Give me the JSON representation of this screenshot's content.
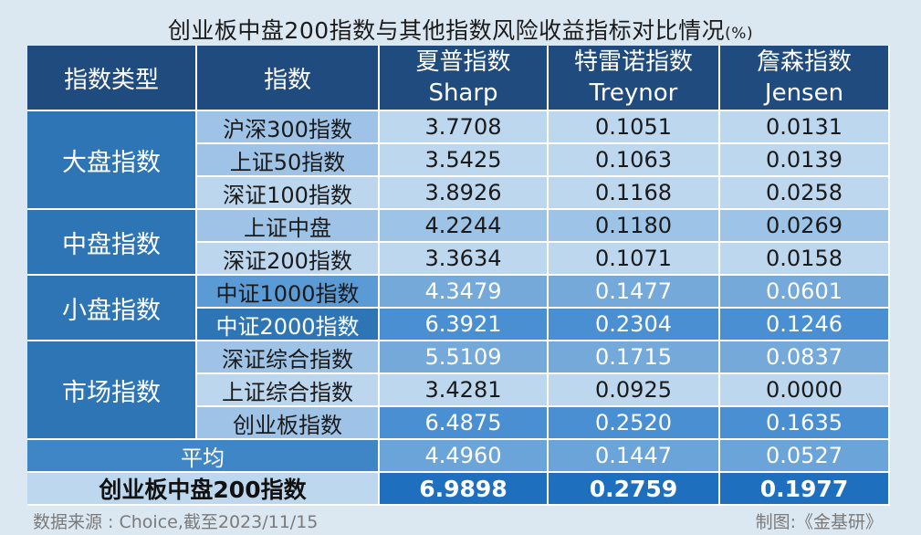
{
  "title": "创业板中盘200指数与其他指数风险收益指标对比情况",
  "title_unit": "(%)",
  "headers": {
    "type": "指数类型",
    "index": "指数",
    "sharp_cn": "夏普指数",
    "sharp_en": "Sharp",
    "treynor_cn": "特雷诺指数",
    "treynor_en": "Treynor",
    "jensen_cn": "詹森指数",
    "jensen_en": "Jensen"
  },
  "groups": [
    {
      "label": "大盘指数"
    },
    {
      "label": "中盘指数"
    },
    {
      "label": "小盘指数"
    },
    {
      "label": "市场指数"
    }
  ],
  "rows": [
    {
      "name": "沪深300指数",
      "sharp": "3.7708",
      "treynor": "0.1051",
      "jensen": "0.0131"
    },
    {
      "name": "上证50指数",
      "sharp": "3.5425",
      "treynor": "0.1063",
      "jensen": "0.0139"
    },
    {
      "name": "深证100指数",
      "sharp": "3.8926",
      "treynor": "0.1168",
      "jensen": "0.0258"
    },
    {
      "name": "上证中盘",
      "sharp": "4.2244",
      "treynor": "0.1180",
      "jensen": "0.0269"
    },
    {
      "name": "深证200指数",
      "sharp": "3.3634",
      "treynor": "0.1071",
      "jensen": "0.0158"
    },
    {
      "name": "中证1000指数",
      "sharp": "4.3479",
      "treynor": "0.1477",
      "jensen": "0.0601"
    },
    {
      "name": "中证2000指数",
      "sharp": "6.3921",
      "treynor": "0.2304",
      "jensen": "0.1246"
    },
    {
      "name": "深证综合指数",
      "sharp": "5.5109",
      "treynor": "0.1715",
      "jensen": "0.0837"
    },
    {
      "name": "上证综合指数",
      "sharp": "3.4281",
      "treynor": "0.0925",
      "jensen": "0.0000"
    },
    {
      "name": "创业板指数",
      "sharp": "6.4875",
      "treynor": "0.2520",
      "jensen": "0.1635"
    }
  ],
  "average": {
    "label": "平均",
    "sharp": "4.4960",
    "treynor": "0.1447",
    "jensen": "0.0527"
  },
  "target": {
    "label": "创业板中盘200指数",
    "sharp": "6.9898",
    "treynor": "0.2759",
    "jensen": "0.1977"
  },
  "footer": {
    "source": "数据来源 : Choice,截至2023/11/15",
    "credit": "制图:《金基研》"
  },
  "colors": {
    "header": "#1f4b7e",
    "category": "#2e75b6",
    "background": "#dce8f1"
  }
}
